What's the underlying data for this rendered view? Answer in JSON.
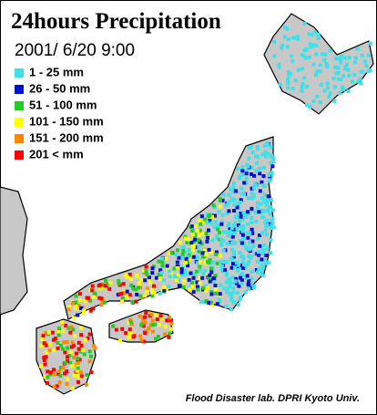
{
  "header": {
    "title": "24hours Precipitation",
    "date": "2001/ 6/20  9:00"
  },
  "legend": [
    {
      "label": "1 - 25 mm",
      "color": "#40e0e8"
    },
    {
      "label": "26 - 50 mm",
      "color": "#0010d0"
    },
    {
      "label": "51 - 100 mm",
      "color": "#22cc22"
    },
    {
      "label": "101 - 150 mm",
      "color": "#ffff00"
    },
    {
      "label": "151 - 200 mm",
      "color": "#ff8800"
    },
    {
      "label": "201 < mm",
      "color": "#ff0000"
    }
  ],
  "credit": "Flood Disaster lab. DPRI Kyoto Univ."
}
